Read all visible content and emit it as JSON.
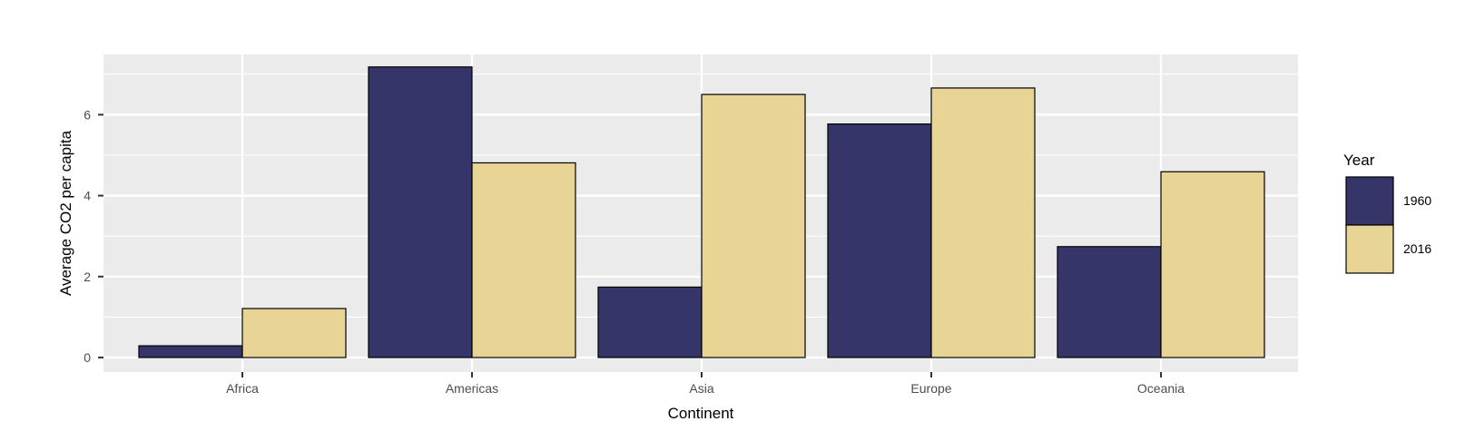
{
  "chart_data": {
    "type": "bar",
    "title": "",
    "xlabel": "Continent",
    "ylabel": "Average CO2 per capita",
    "categories": [
      "Africa",
      "Americas",
      "Asia",
      "Europe",
      "Oceania"
    ],
    "series": [
      {
        "name": "1960",
        "values": [
          0.29,
          7.18,
          1.74,
          5.77,
          2.74
        ],
        "color": "#35356a"
      },
      {
        "name": "2016",
        "values": [
          1.21,
          4.81,
          6.5,
          6.66,
          4.59
        ],
        "color": "#e8d494"
      }
    ],
    "ylim": [
      0,
      7.5
    ],
    "yticks": [
      0,
      2,
      4,
      6
    ],
    "grid": true,
    "panel_background": "#ebebeb",
    "legend": {
      "title": "Year",
      "position": "right"
    }
  }
}
